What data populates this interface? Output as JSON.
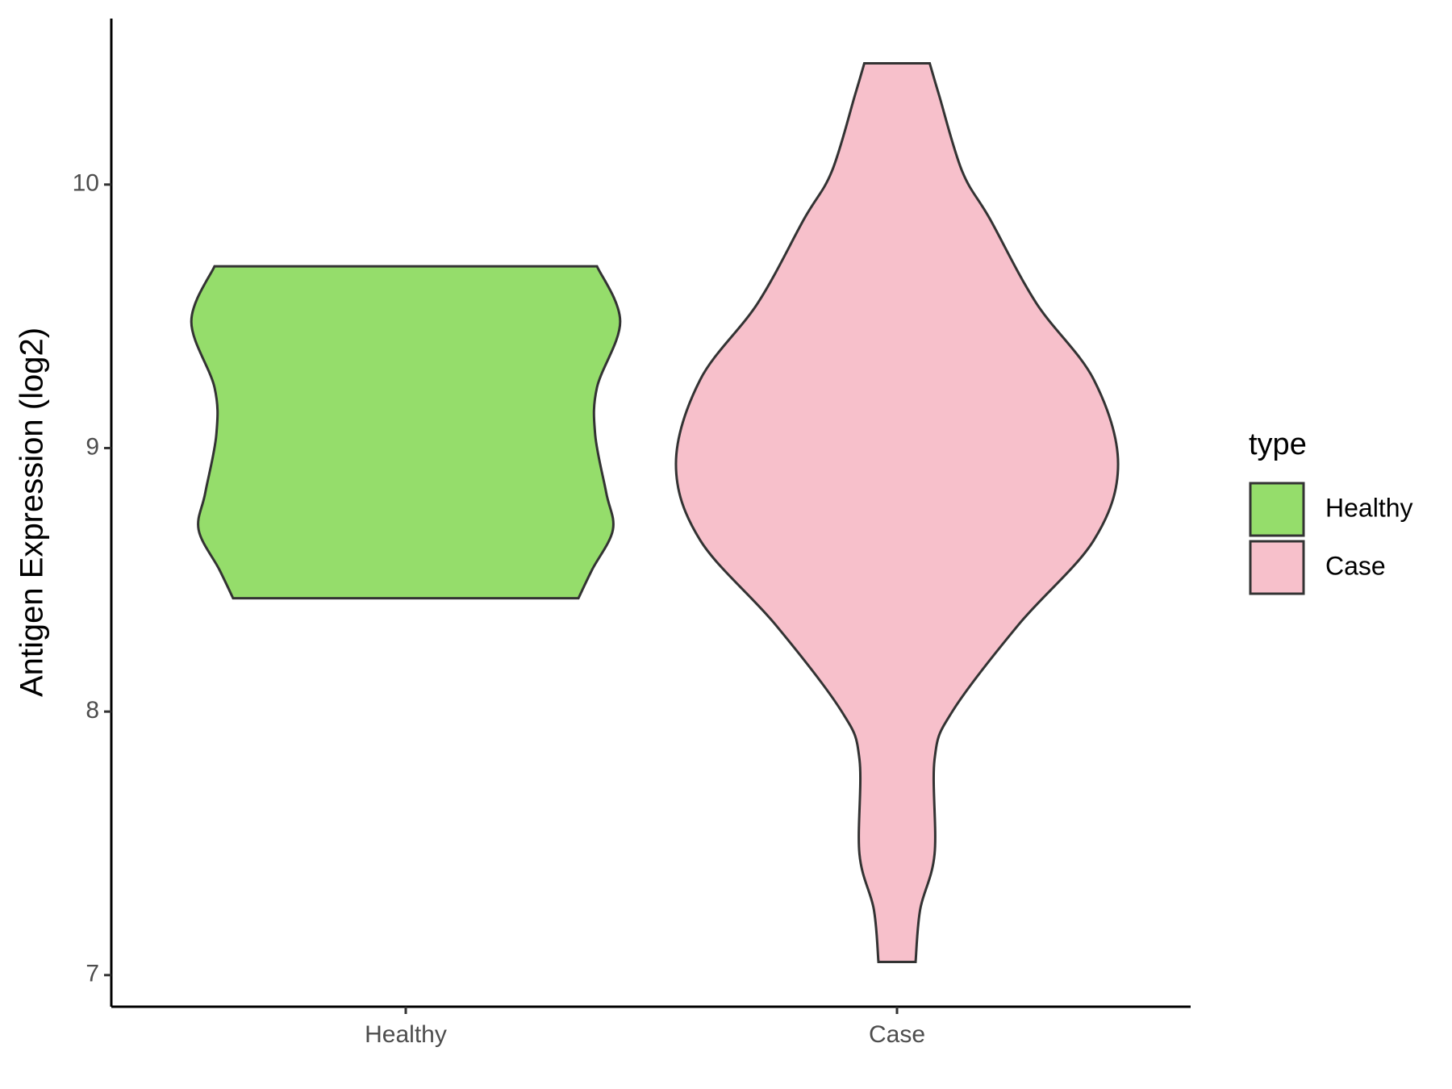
{
  "chart_data": {
    "type": "violin",
    "y_label": "Antigen Expression (log2)",
    "categories": [
      "Healthy",
      "Case"
    ],
    "legend_title": "type",
    "legend_position": "right",
    "series": [
      {
        "name": "Healthy",
        "color": "#95DD6B",
        "y": [
          9.69,
          9.48,
          9.23,
          9.05,
          8.83,
          8.69,
          8.54,
          8.43
        ],
        "density": [
          0.865,
          0.97,
          0.865,
          0.857,
          0.907,
          0.937,
          0.844,
          0.781
        ]
      },
      {
        "name": "Case",
        "color": "#F7C0CB",
        "y": [
          10.46,
          10.34,
          10.05,
          9.87,
          9.55,
          9.26,
          8.94,
          8.65,
          8.33,
          8.0,
          7.82,
          7.46,
          7.25,
          7.05
        ],
        "density": [
          0.148,
          0.19,
          0.295,
          0.42,
          0.63,
          0.89,
          1,
          0.89,
          0.55,
          0.25,
          0.17,
          0.17,
          0.105,
          0.084
        ]
      }
    ],
    "ylim": [
      6.88,
      10.63
    ],
    "yticks": [
      7,
      8,
      9,
      10
    ]
  }
}
